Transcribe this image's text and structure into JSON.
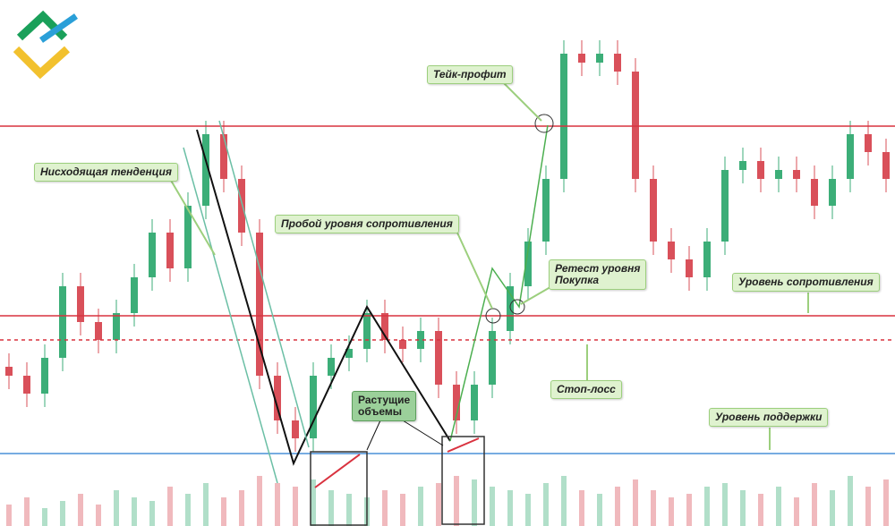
{
  "chart_data": {
    "type": "candlestick",
    "ylim": [
      0,
      102
    ],
    "open": [
      20,
      18,
      14,
      22,
      38,
      30,
      26,
      32,
      40,
      50,
      42,
      56,
      72,
      62,
      50,
      18,
      8,
      4,
      18,
      22,
      24,
      32,
      26,
      24,
      28,
      16,
      8,
      16,
      28,
      38,
      48,
      62,
      90,
      88,
      90,
      86,
      62,
      48,
      44,
      40,
      48,
      64,
      66,
      62,
      64,
      62,
      56,
      62,
      72,
      68
    ],
    "high": [
      23,
      21,
      25,
      41,
      41,
      33,
      35,
      43,
      53,
      53,
      59,
      75,
      75,
      65,
      53,
      21,
      11,
      21,
      25,
      27,
      35,
      35,
      29,
      31,
      31,
      19,
      19,
      31,
      41,
      51,
      65,
      93,
      93,
      93,
      93,
      89,
      65,
      51,
      47,
      51,
      67,
      69,
      69,
      67,
      67,
      65,
      65,
      75,
      75,
      71
    ],
    "low": [
      15,
      11,
      11,
      19,
      27,
      23,
      23,
      29,
      37,
      39,
      39,
      53,
      59,
      47,
      15,
      5,
      1,
      1,
      15,
      19,
      21,
      23,
      21,
      21,
      13,
      5,
      5,
      13,
      25,
      35,
      45,
      59,
      85,
      85,
      83,
      59,
      45,
      41,
      37,
      37,
      45,
      61,
      59,
      59,
      59,
      53,
      53,
      59,
      65,
      59
    ],
    "close": [
      18,
      14,
      22,
      38,
      30,
      26,
      32,
      40,
      50,
      42,
      56,
      72,
      62,
      50,
      18,
      8,
      4,
      18,
      22,
      24,
      32,
      26,
      24,
      28,
      16,
      8,
      16,
      28,
      38,
      48,
      62,
      90,
      88,
      90,
      86,
      62,
      48,
      44,
      40,
      48,
      64,
      66,
      62,
      64,
      62,
      56,
      62,
      72,
      68,
      62
    ],
    "volume": [
      30,
      40,
      25,
      35,
      45,
      30,
      50,
      40,
      35,
      55,
      45,
      60,
      40,
      50,
      70,
      60,
      55,
      65,
      50,
      45,
      40,
      50,
      45,
      55,
      60,
      70,
      65,
      55,
      50,
      45,
      60,
      70,
      50,
      45,
      55,
      65,
      50,
      40,
      45,
      55,
      60,
      50,
      45,
      55,
      40,
      60,
      50,
      70,
      55,
      65
    ],
    "up_color": "#3cae78",
    "down_color": "#d9505a",
    "levels": [
      {
        "name": "resistance-high",
        "value": 73.8,
        "color": "#d8323f",
        "dashed": false
      },
      {
        "name": "resistance",
        "value": 31.4,
        "color": "#d8323f",
        "dashed": false
      },
      {
        "name": "stop-loss",
        "value": 26,
        "color": "#d8323f",
        "dashed": true
      },
      {
        "name": "support",
        "value": 0.6,
        "color": "#4a90d9",
        "dashed": false
      }
    ],
    "annotations": [
      {
        "lines": [
          "Нисходящая тенденция"
        ]
      },
      {
        "lines": [
          "Пробой уровня сопротивления"
        ]
      },
      {
        "lines": [
          "Тейк-профит"
        ]
      },
      {
        "lines": [
          "Ретест уровня",
          "Покупка"
        ]
      },
      {
        "lines": [
          "Уровень сопротивления"
        ]
      },
      {
        "lines": [
          "Стоп-лосс"
        ]
      },
      {
        "lines": [
          "Уровень поддержки"
        ]
      },
      {
        "lines": [
          "Растущие",
          "объемы"
        ]
      }
    ]
  }
}
